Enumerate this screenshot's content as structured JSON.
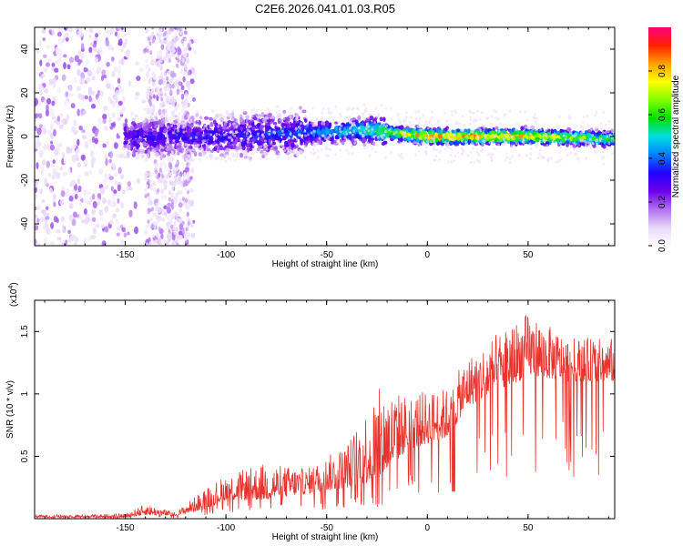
{
  "title": "C2E6.2026.041.01.03.R05",
  "chart_data": [
    {
      "type": "heatmap",
      "name": "spectrogram",
      "xlabel": "Height of straight line (km)",
      "ylabel": "Frequency (Hz)",
      "xlim": [
        -195,
        93
      ],
      "ylim": [
        -50,
        50
      ],
      "xticks": [
        -150,
        -100,
        -50,
        0,
        50
      ],
      "yticks": [
        -40,
        -20,
        0,
        20,
        40
      ],
      "colorbar": {
        "label": "Normalized spectral amplitude",
        "range": [
          0,
          1
        ],
        "ticks": [
          0.0,
          0.2,
          0.4,
          0.6,
          0.8
        ],
        "colormap": [
          "#ffffff",
          "#e8d8f8",
          "#b070f0",
          "#6a00e8",
          "#2000ff",
          "#0080ff",
          "#00e0e0",
          "#00e000",
          "#80ff00",
          "#ffff00",
          "#ffa000",
          "#ff2000",
          "#ff0080"
        ]
      },
      "trace": {
        "description_points": [
          {
            "x": -120,
            "y": 0,
            "level": 0.3
          },
          {
            "x": -80,
            "y": 1,
            "level": 0.35
          },
          {
            "x": -50,
            "y": 2,
            "level": 0.45
          },
          {
            "x": -30,
            "y": 3,
            "level": 0.55
          },
          {
            "x": 0,
            "y": 0,
            "level": 0.85
          },
          {
            "x": 50,
            "y": 0,
            "level": 0.8
          },
          {
            "x": 90,
            "y": -1,
            "level": 0.6
          }
        ]
      }
    },
    {
      "type": "line",
      "name": "snr",
      "xlabel": "Height of straight line (km)",
      "ylabel": "SNR (10 * v/v)",
      "scale_label": "(x10",
      "scale_exp": "4",
      "scale_close": ")",
      "xlim": [
        -195,
        93
      ],
      "ylim": [
        0,
        1.75
      ],
      "xticks": [
        -150,
        -100,
        -50,
        0,
        50
      ],
      "yticks": [
        0.5,
        1.0,
        1.5
      ],
      "color": "#e8322c",
      "envelope": [
        {
          "x": -195,
          "base": 0.01,
          "peak": 0.03
        },
        {
          "x": -150,
          "base": 0.01,
          "peak": 0.04
        },
        {
          "x": -140,
          "base": 0.03,
          "peak": 0.12
        },
        {
          "x": -125,
          "base": 0.02,
          "peak": 0.05
        },
        {
          "x": -110,
          "base": 0.08,
          "peak": 0.25
        },
        {
          "x": -100,
          "base": 0.15,
          "peak": 0.35
        },
        {
          "x": -80,
          "base": 0.15,
          "peak": 0.45
        },
        {
          "x": -60,
          "base": 0.2,
          "peak": 0.4
        },
        {
          "x": -40,
          "base": 0.25,
          "peak": 0.6
        },
        {
          "x": -25,
          "base": 0.3,
          "peak": 1.05
        },
        {
          "x": -10,
          "base": 0.55,
          "peak": 1.0
        },
        {
          "x": 10,
          "base": 0.65,
          "peak": 1.05
        },
        {
          "x": 20,
          "base": 0.9,
          "peak": 1.3
        },
        {
          "x": 40,
          "base": 1.05,
          "peak": 1.55
        },
        {
          "x": 50,
          "base": 1.15,
          "peak": 1.65
        },
        {
          "x": 70,
          "base": 1.1,
          "peak": 1.45
        },
        {
          "x": 93,
          "base": 1.1,
          "peak": 1.45
        }
      ]
    }
  ]
}
